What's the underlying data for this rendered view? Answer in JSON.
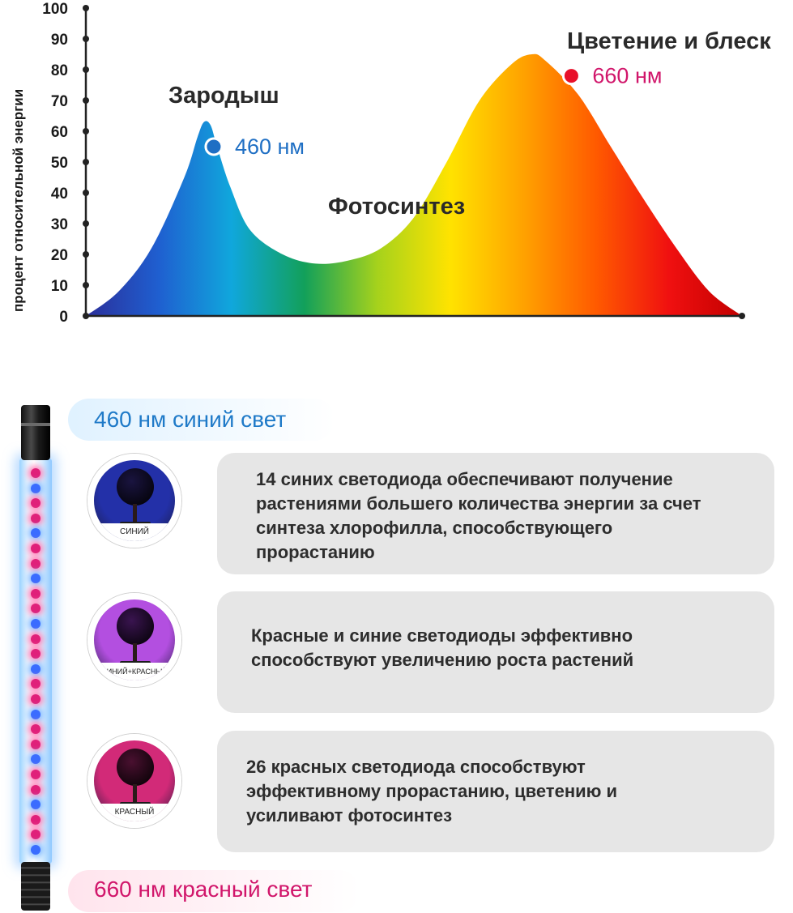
{
  "chart_data": {
    "type": "area",
    "ylabel": "процент относительной энергии",
    "ylim": [
      0,
      100
    ],
    "yticks": [
      0,
      10,
      20,
      30,
      40,
      50,
      60,
      70,
      80,
      90,
      100
    ],
    "gradient_colors": [
      "#2b2f9a",
      "#1f5fd0",
      "#10a7dc",
      "#12a05a",
      "#a6d21c",
      "#ffe300",
      "#ffa200",
      "#ff5a00",
      "#f01010",
      "#c20000"
    ],
    "x": [
      0,
      5,
      10,
      15,
      17,
      18,
      19,
      20,
      22,
      25,
      30,
      35,
      40,
      45,
      50,
      55,
      60,
      65,
      68,
      70,
      75,
      80,
      85,
      90,
      95,
      100
    ],
    "y": [
      0,
      8,
      22,
      45,
      58,
      63,
      62,
      55,
      42,
      28,
      20,
      17,
      18,
      22,
      32,
      50,
      70,
      82,
      85,
      83,
      72,
      55,
      38,
      22,
      8,
      0
    ],
    "annotations": {
      "stage_left": "Зародыш",
      "stage_mid": "Фотосинтез",
      "stage_right": "Цветение и блеск",
      "peak_blue": {
        "label": "460 нм",
        "color": "#1f6fc4",
        "value": 55
      },
      "peak_red": {
        "label": "660 нм",
        "color": "#d1166b",
        "dot_color": "#e8102a",
        "value": 78
      }
    }
  },
  "legend": {
    "blue_heading": "460 нм синий свет",
    "blue_heading_color": "#1f7ac8",
    "red_heading": "660 нм красный свет",
    "red_heading_color": "#d1166b"
  },
  "rows": [
    {
      "caption": "СИНИЙ",
      "text_lines": [
        "14 синих светодиода обеспечивают получение",
        "растениями большего количества энергии за счет",
        "синтеза хлорофилла, способствующего",
        "прорастанию"
      ],
      "bg": "#2330a8",
      "canopy": "#1a1440"
    },
    {
      "caption": "СИНИЙ+КРАСНЫЙ",
      "text_lines": [
        "Красные и синие светодиоды эффективно",
        "способствуют увеличению роста растений"
      ],
      "bg": "#b34fe0",
      "canopy": "#3a1450"
    },
    {
      "caption": "КРАСНЫЙ",
      "text_lines": [
        "26 красных светодиода способствуют",
        "эффективному прорастанию, цветению и",
        "усиливают фотосинтез"
      ],
      "bg": "#d22a78",
      "canopy": "#4a1030"
    }
  ]
}
